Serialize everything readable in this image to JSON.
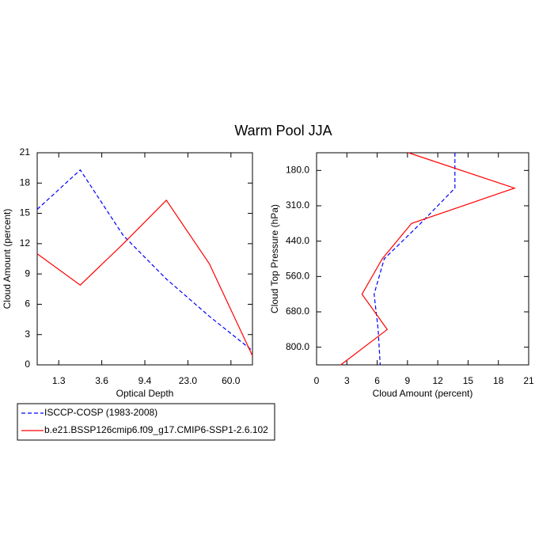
{
  "title": "Warm Pool JJA",
  "chart_data": [
    {
      "type": "line",
      "orientation": "vertical",
      "x_label": "Optical Depth",
      "y_label": "Cloud Amount (percent)",
      "x": [
        0,
        1,
        2,
        3,
        4,
        5
      ],
      "xlim": [
        0,
        5
      ],
      "xticks": [
        {
          "value": 0.5,
          "label": "1.3"
        },
        {
          "value": 1.5,
          "label": "3.6"
        },
        {
          "value": 2.5,
          "label": "9.4"
        },
        {
          "value": 3.5,
          "label": "23.0"
        },
        {
          "value": 4.5,
          "label": "60.0"
        }
      ],
      "ylim": [
        0,
        21
      ],
      "yticks": [
        0,
        3,
        6,
        9,
        12,
        15,
        18,
        21
      ],
      "series": [
        {
          "name": "ISCCP-COSP (1983-2008)",
          "color": "#0000ff",
          "dashed": true,
          "values": [
            15.4,
            19.3,
            12.8,
            8.5,
            4.8,
            1.4
          ]
        },
        {
          "name": "b.e21.BSSP126cmip6.f09_g17.CMIP6-SSP1-2.6.102",
          "color": "#ff0000",
          "dashed": false,
          "values": [
            11.0,
            7.9,
            12.0,
            16.3,
            10.0,
            0.9
          ]
        }
      ]
    },
    {
      "type": "line",
      "orientation": "horizontal",
      "x_label": "Cloud Amount (percent)",
      "y_label": "Cloud Top Pressure (hPa)",
      "y": [
        0,
        1,
        2,
        3,
        4,
        5,
        6
      ],
      "ylim": [
        0,
        6
      ],
      "y_inverted": true,
      "yticks": [
        {
          "value": 0.5,
          "label": "180.0"
        },
        {
          "value": 1.5,
          "label": "310.0"
        },
        {
          "value": 2.5,
          "label": "440.0"
        },
        {
          "value": 3.5,
          "label": "560.0"
        },
        {
          "value": 4.5,
          "label": "680.0"
        },
        {
          "value": 5.5,
          "label": "800.0"
        }
      ],
      "xlim": [
        0,
        21
      ],
      "xticks": [
        0,
        3,
        6,
        9,
        12,
        15,
        18,
        21
      ],
      "series": [
        {
          "color": "#0000ff",
          "dashed": true,
          "values": [
            13.7,
            13.7,
            10.3,
            6.7,
            5.7,
            6.1,
            6.3
          ]
        },
        {
          "color": "#ff0000",
          "dashed": false,
          "values": [
            9.1,
            19.6,
            9.4,
            6.5,
            4.5,
            7.0,
            2.4
          ]
        }
      ]
    }
  ]
}
